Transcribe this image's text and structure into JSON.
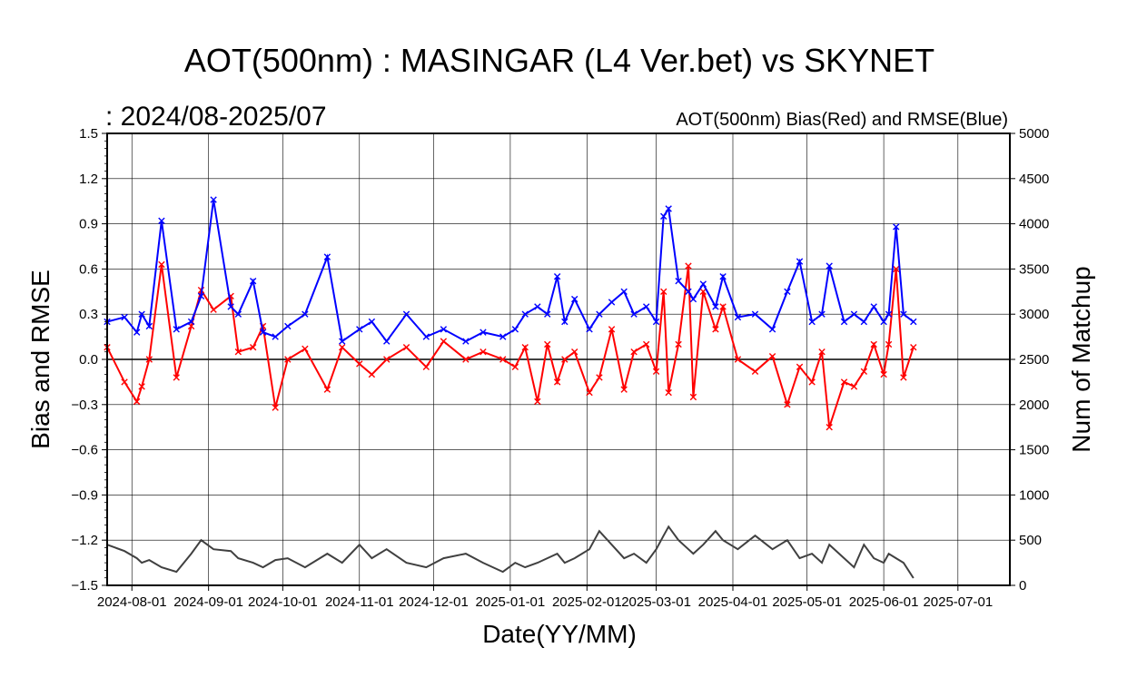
{
  "chart_data": {
    "type": "line",
    "title": "AOT(500nm) : MASINGAR (L4 Ver.bet) vs SKYNET",
    "period_label": ":  2024/08-2025/07",
    "legend_note": "AOT(500nm) Bias(Red) and RMSE(Blue)",
    "xlabel": "Date(YY/MM)",
    "ylabel_left": "Bias and RMSE",
    "ylabel_right": "Num of Matchup",
    "x_range": [
      "2024-07-22",
      "2025-07-22"
    ],
    "x_ticks": [
      "2024-08-01",
      "2024-09-01",
      "2024-10-01",
      "2024-11-01",
      "2024-12-01",
      "2025-01-01",
      "2025-02-01",
      "2025-03-01",
      "2025-04-01",
      "2025-05-01",
      "2025-06-01",
      "2025-07-01"
    ],
    "y_left_range": [
      -1.5,
      1.5
    ],
    "y_left_ticks": [
      "-1.5",
      "-1.2",
      "-0.9",
      "-0.6",
      "-0.3",
      "0.0",
      "0.3",
      "0.6",
      "0.9",
      "1.2",
      "1.5"
    ],
    "y_right_range": [
      0,
      5000
    ],
    "y_right_ticks": [
      "0",
      "500",
      "1000",
      "1500",
      "2000",
      "2500",
      "3000",
      "3500",
      "4000",
      "4500",
      "5000"
    ],
    "grid": true,
    "colors": {
      "bias": "#ff0000",
      "rmse": "#0000ff",
      "matchup": "#404040",
      "zero_line": "#000000"
    },
    "series": [
      {
        "name": "Bias",
        "axis": "left",
        "marker": "x",
        "color": "#ff0000",
        "x": [
          "2024-07-22",
          "2024-07-29",
          "2024-08-03",
          "2024-08-05",
          "2024-08-08",
          "2024-08-13",
          "2024-08-19",
          "2024-08-25",
          "2024-08-29",
          "2024-09-03",
          "2024-09-10",
          "2024-09-13",
          "2024-09-19",
          "2024-09-23",
          "2024-09-28",
          "2024-10-03",
          "2024-10-10",
          "2024-10-19",
          "2024-10-25",
          "2024-11-01",
          "2024-11-06",
          "2024-11-12",
          "2024-11-20",
          "2024-11-28",
          "2024-12-05",
          "2024-12-14",
          "2024-12-21",
          "2024-12-29",
          "2025-01-03",
          "2025-01-07",
          "2025-01-12",
          "2025-01-16",
          "2025-01-20",
          "2025-01-23",
          "2025-01-27",
          "2025-02-02",
          "2025-02-06",
          "2025-02-11",
          "2025-02-16",
          "2025-02-20",
          "2025-02-25",
          "2025-03-01",
          "2025-03-04",
          "2025-03-06",
          "2025-03-10",
          "2025-03-14",
          "2025-03-16",
          "2025-03-20",
          "2025-03-25",
          "2025-03-28",
          "2025-04-03",
          "2025-04-10",
          "2025-04-17",
          "2025-04-23",
          "2025-04-28",
          "2025-05-03",
          "2025-05-07",
          "2025-05-10",
          "2025-05-16",
          "2025-05-20",
          "2025-05-24",
          "2025-05-28",
          "2025-06-01",
          "2025-06-03",
          "2025-06-06",
          "2025-06-09",
          "2025-06-13"
        ],
        "y": [
          0.08,
          -0.15,
          -0.28,
          -0.18,
          0.0,
          0.63,
          -0.12,
          0.22,
          0.46,
          0.33,
          0.42,
          0.05,
          0.08,
          0.22,
          -0.32,
          0.0,
          0.07,
          -0.2,
          0.08,
          -0.03,
          -0.1,
          0.0,
          0.08,
          -0.05,
          0.12,
          0.0,
          0.05,
          0.0,
          -0.05,
          0.08,
          -0.28,
          0.1,
          -0.15,
          0.0,
          0.05,
          -0.22,
          -0.12,
          0.2,
          -0.2,
          0.05,
          0.1,
          -0.08,
          0.45,
          -0.22,
          0.1,
          0.62,
          -0.25,
          0.45,
          0.2,
          0.35,
          0.0,
          -0.08,
          0.02,
          -0.3,
          -0.05,
          -0.15,
          0.05,
          -0.45,
          -0.15,
          -0.18,
          -0.08,
          0.1,
          -0.1,
          0.1,
          0.6,
          -0.12,
          0.08
        ]
      },
      {
        "name": "RMSE",
        "axis": "left",
        "marker": "x",
        "color": "#0000ff",
        "x": [
          "2024-07-22",
          "2024-07-29",
          "2024-08-03",
          "2024-08-05",
          "2024-08-08",
          "2024-08-13",
          "2024-08-19",
          "2024-08-25",
          "2024-08-29",
          "2024-09-03",
          "2024-09-10",
          "2024-09-13",
          "2024-09-19",
          "2024-09-23",
          "2024-09-28",
          "2024-10-03",
          "2024-10-10",
          "2024-10-19",
          "2024-10-25",
          "2024-11-01",
          "2024-11-06",
          "2024-11-12",
          "2024-11-20",
          "2024-11-28",
          "2024-12-05",
          "2024-12-14",
          "2024-12-21",
          "2024-12-29",
          "2025-01-03",
          "2025-01-07",
          "2025-01-12",
          "2025-01-16",
          "2025-01-20",
          "2025-01-23",
          "2025-01-27",
          "2025-02-02",
          "2025-02-06",
          "2025-02-11",
          "2025-02-16",
          "2025-02-20",
          "2025-02-25",
          "2025-03-01",
          "2025-03-04",
          "2025-03-06",
          "2025-03-10",
          "2025-03-14",
          "2025-03-16",
          "2025-03-20",
          "2025-03-25",
          "2025-03-28",
          "2025-04-03",
          "2025-04-10",
          "2025-04-17",
          "2025-04-23",
          "2025-04-28",
          "2025-05-03",
          "2025-05-07",
          "2025-05-10",
          "2025-05-16",
          "2025-05-20",
          "2025-05-24",
          "2025-05-28",
          "2025-06-01",
          "2025-06-03",
          "2025-06-06",
          "2025-06-09",
          "2025-06-13"
        ],
        "y": [
          0.25,
          0.28,
          0.18,
          0.3,
          0.22,
          0.92,
          0.2,
          0.25,
          0.42,
          1.06,
          0.35,
          0.3,
          0.52,
          0.18,
          0.15,
          0.22,
          0.3,
          0.68,
          0.12,
          0.2,
          0.25,
          0.12,
          0.3,
          0.15,
          0.2,
          0.12,
          0.18,
          0.15,
          0.2,
          0.3,
          0.35,
          0.3,
          0.55,
          0.25,
          0.4,
          0.2,
          0.3,
          0.38,
          0.45,
          0.3,
          0.35,
          0.25,
          0.95,
          1.0,
          0.52,
          0.45,
          0.4,
          0.5,
          0.35,
          0.55,
          0.28,
          0.3,
          0.2,
          0.45,
          0.65,
          0.25,
          0.3,
          0.62,
          0.25,
          0.3,
          0.25,
          0.35,
          0.25,
          0.3,
          0.88,
          0.3,
          0.25
        ]
      },
      {
        "name": "Num of Matchup",
        "axis": "right",
        "marker": "none",
        "color": "#404040",
        "x": [
          "2024-07-22",
          "2024-07-29",
          "2024-08-03",
          "2024-08-05",
          "2024-08-08",
          "2024-08-13",
          "2024-08-19",
          "2024-08-25",
          "2024-08-29",
          "2024-09-03",
          "2024-09-10",
          "2024-09-13",
          "2024-09-19",
          "2024-09-23",
          "2024-09-28",
          "2024-10-03",
          "2024-10-10",
          "2024-10-19",
          "2024-10-25",
          "2024-11-01",
          "2024-11-06",
          "2024-11-12",
          "2024-11-20",
          "2024-11-28",
          "2024-12-05",
          "2024-12-14",
          "2024-12-21",
          "2024-12-29",
          "2025-01-03",
          "2025-01-07",
          "2025-01-12",
          "2025-01-16",
          "2025-01-20",
          "2025-01-23",
          "2025-01-27",
          "2025-02-02",
          "2025-02-06",
          "2025-02-11",
          "2025-02-16",
          "2025-02-20",
          "2025-02-25",
          "2025-03-01",
          "2025-03-04",
          "2025-03-06",
          "2025-03-10",
          "2025-03-14",
          "2025-03-16",
          "2025-03-20",
          "2025-03-25",
          "2025-03-28",
          "2025-04-03",
          "2025-04-10",
          "2025-04-17",
          "2025-04-23",
          "2025-04-28",
          "2025-05-03",
          "2025-05-07",
          "2025-05-10",
          "2025-05-16",
          "2025-05-20",
          "2025-05-24",
          "2025-05-28",
          "2025-06-01",
          "2025-06-03",
          "2025-06-06",
          "2025-06-09",
          "2025-06-13"
        ],
        "y": [
          450,
          380,
          300,
          250,
          280,
          200,
          150,
          350,
          500,
          400,
          380,
          300,
          250,
          200,
          280,
          300,
          200,
          350,
          250,
          450,
          300,
          400,
          250,
          200,
          300,
          350,
          250,
          150,
          250,
          200,
          250,
          300,
          350,
          250,
          300,
          400,
          600,
          450,
          300,
          350,
          250,
          400,
          550,
          650,
          500,
          400,
          350,
          450,
          600,
          500,
          400,
          550,
          400,
          500,
          300,
          350,
          250,
          450,
          300,
          200,
          450,
          300,
          250,
          350,
          300,
          250,
          80
        ]
      }
    ]
  }
}
